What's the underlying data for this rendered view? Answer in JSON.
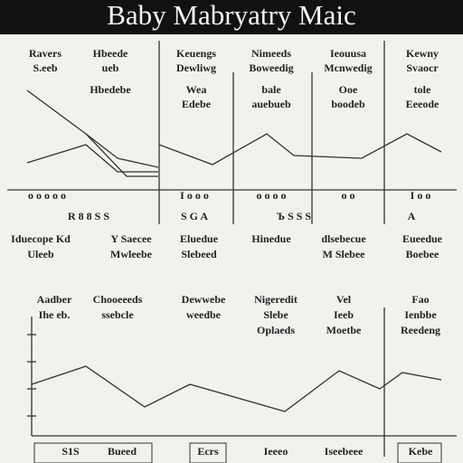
{
  "header": {
    "title": "Baby Mabryatry Maic"
  },
  "top": {
    "headers": [
      [
        "Ravers",
        "S.eeb"
      ],
      [
        "Hbeede",
        "ueb"
      ],
      [
        "Keuengs",
        "Dewliwg"
      ],
      [
        "Nimeeds",
        "Boweedig"
      ],
      [
        "Ieouusa",
        "Mcnwedig"
      ],
      [
        "Kewny",
        "Svaocr"
      ]
    ],
    "subheads": [
      [],
      [
        "Hbedebe"
      ],
      [
        "Wea",
        "Edebe"
      ],
      [
        "bale",
        "auebueb"
      ],
      [
        "Ooe",
        "boodeb"
      ],
      [
        "tole",
        "Eeeode"
      ]
    ],
    "ticks": [
      "o   o   o   o   o",
      "I  o  o  o",
      "o   o   o   o",
      "o   o",
      "I  o  o"
    ],
    "axis_labels": [
      "R   8   8   S   S",
      "S   G   A",
      "Ъ   S   S   S",
      "A"
    ],
    "captions": [
      [
        "Iduecope Kd",
        "Uleeb"
      ],
      [
        "Y Saecee",
        "Mwleebe"
      ],
      [
        "Eluedue",
        "Slebeed"
      ],
      [
        "Hinedue"
      ],
      [
        "dlsebecue",
        "M Slebee"
      ],
      [
        "Eueedue",
        "Boebee"
      ]
    ]
  },
  "bottom": {
    "headers": [
      [
        "Aadber",
        "Ihe eb."
      ],
      [
        "Chooeeeds",
        "ssebcle"
      ],
      [
        "Dewwebe",
        "weedbe"
      ],
      [
        "Nigeredit",
        "Slebe",
        "Oplaeds"
      ],
      [
        "Vel",
        "Ieeb",
        "Moetbe"
      ],
      [
        "Fao",
        "Ienbbe",
        "Reedeng"
      ]
    ],
    "labels": [
      "S1S",
      "Bueed",
      "Ecrs",
      "Ieeeo",
      "Iseebeee",
      "Kebe"
    ]
  }
}
